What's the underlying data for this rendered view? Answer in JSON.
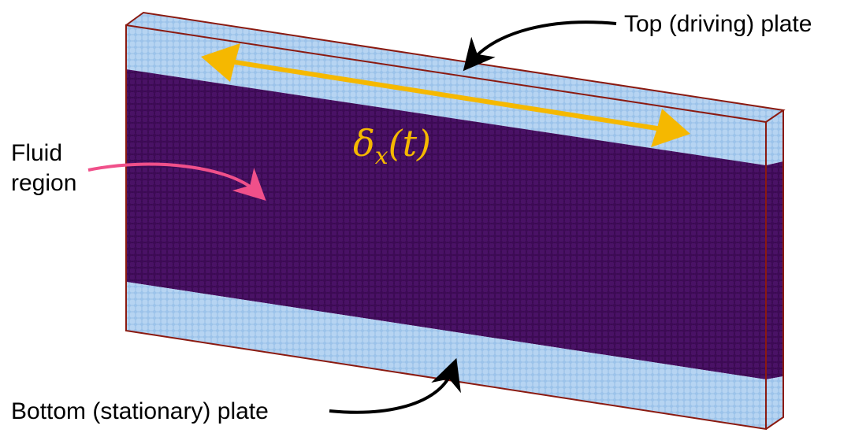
{
  "labels": {
    "top_plate": "Top (driving) plate",
    "bottom_plate": "Bottom (stationary) plate",
    "fluid_line1": "Fluid",
    "fluid_line2": "region"
  },
  "displacement": {
    "symbol": "δ",
    "subscript": "x",
    "argument": "(t)"
  },
  "colors": {
    "plate_atom": "#9cc3ea",
    "plate_atom_shade": "#6f97c4",
    "fluid_atom": "#3d0a55",
    "fluid_atom_shade": "#230432",
    "box_edge": "#8b1a10",
    "displacement_arrow": "#f5b800",
    "fluid_pointer": "#f0508a",
    "plate_pointer": "#000000"
  }
}
